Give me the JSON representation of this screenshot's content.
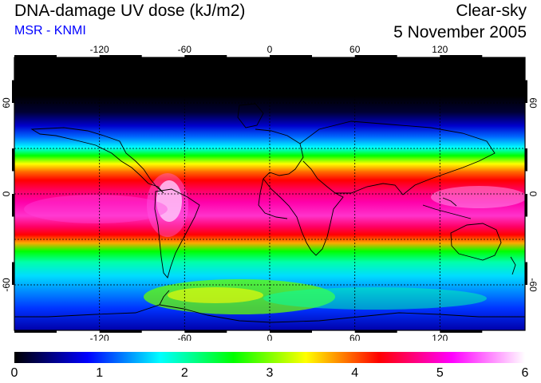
{
  "header": {
    "title": "DNA-damage UV dose (kJ/m2)",
    "subtitle": "MSR - KNMI",
    "sky_condition": "Clear-sky",
    "date": "5 November 2005"
  },
  "map": {
    "projection": "equirectangular",
    "lon_range": [
      -180,
      180
    ],
    "lat_range": [
      -90,
      90
    ],
    "lon_ticks": [
      "-120",
      "-60",
      "0",
      "60",
      "120"
    ],
    "lat_ticks_left": [
      "60",
      "0",
      "-60"
    ],
    "lat_ticks_right": [
      "60",
      "0",
      "-60"
    ],
    "gridlines": "dashed every 30 degrees",
    "quantity": "DNA-damage UV dose",
    "unit": "kJ/m2"
  },
  "colorbar": {
    "min": 0,
    "max": 6,
    "labels": [
      "0",
      "1",
      "2",
      "3",
      "4",
      "5",
      "6"
    ],
    "colors": [
      "#000000",
      "#0000ff",
      "#00ffff",
      "#00ff00",
      "#ffff00",
      "#ff0000",
      "#ff00ff",
      "#ffffff"
    ]
  }
}
